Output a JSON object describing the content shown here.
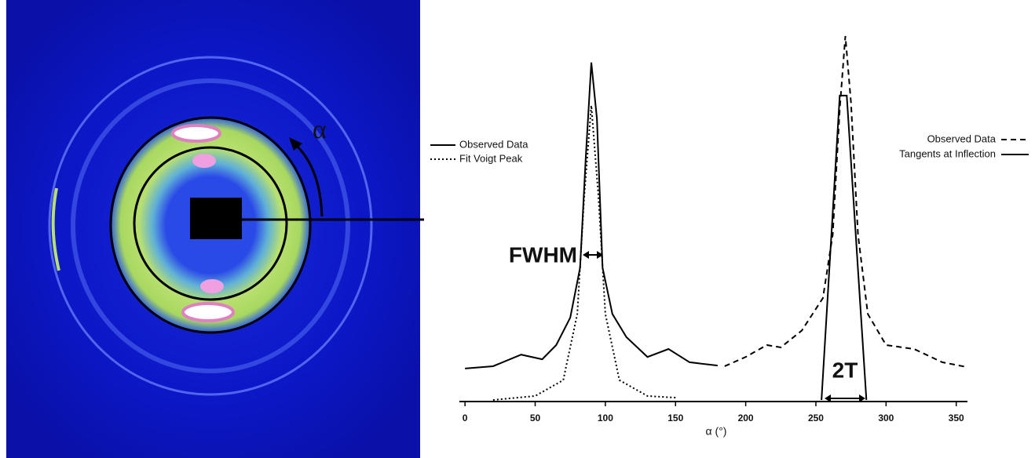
{
  "image": {
    "label": "α"
  },
  "chart_data": {
    "type": "line",
    "xlabel": "α (°)",
    "xlim": [
      -4,
      358
    ],
    "xticks": [
      0,
      50,
      100,
      150,
      200,
      250,
      300,
      350
    ],
    "ylim": [
      0,
      110
    ],
    "annotations": [
      "FWHM",
      "2T"
    ],
    "series": [
      {
        "name": "Observed Data",
        "color": "#000000",
        "style": "solid",
        "legend": "upper-left",
        "x": [
          0,
          20,
          40,
          55,
          65,
          75,
          82,
          86,
          90,
          94,
          98,
          105,
          115,
          130,
          145,
          160,
          180
        ],
        "values": [
          9.5,
          10.2,
          13.7,
          12.3,
          16.6,
          24.9,
          40,
          73,
          102,
          85,
          40,
          26,
          19,
          13,
          15.4,
          11.4,
          10.4
        ]
      },
      {
        "name": "Fit Voigt Peak",
        "color": "#000000",
        "style": "dotted",
        "legend": "upper-left",
        "x": [
          20,
          50,
          70,
          80,
          85,
          90,
          95,
          100,
          110,
          130,
          150
        ],
        "values": [
          0,
          1.2,
          6,
          26,
          62,
          89,
          62,
          26,
          6,
          1.2,
          0.7
        ]
      },
      {
        "name": "Observed Data",
        "color": "#000000",
        "style": "dashed",
        "legend": "upper-right",
        "x": [
          185,
          200,
          215,
          225,
          240,
          255,
          262,
          267,
          271,
          275,
          280,
          287,
          300,
          320,
          340,
          357
        ],
        "values": [
          10.2,
          13,
          16.6,
          15.9,
          21,
          30.8,
          50,
          88,
          110,
          90,
          50,
          26,
          16.6,
          15.4,
          11.4,
          10
        ]
      },
      {
        "name": "Tangents at Inflection",
        "color": "#000000",
        "style": "solid",
        "legend": "upper-right",
        "x": [
          254,
          267,
          272,
          286
        ],
        "values": [
          0,
          92,
          92,
          0
        ]
      }
    ]
  }
}
